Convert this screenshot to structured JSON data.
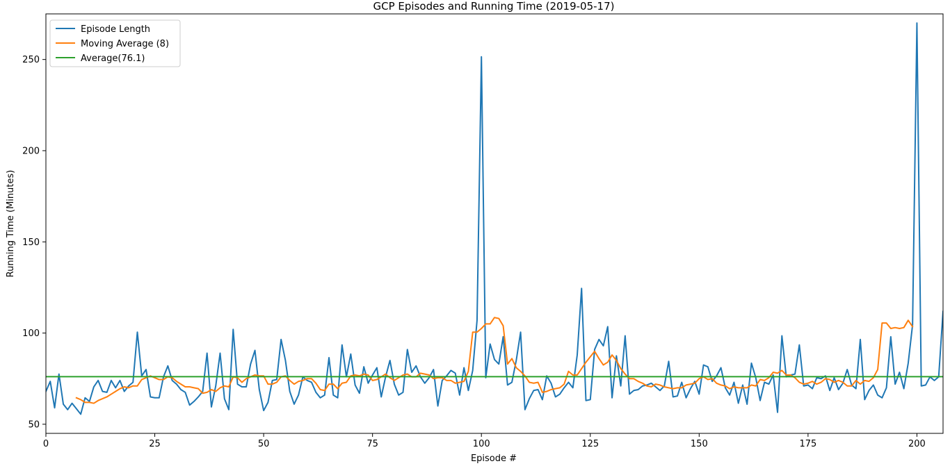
{
  "chart_data": {
    "type": "line",
    "title": "GCP Episodes and Running Time (2019-05-17)",
    "xlabel": "Episode #",
    "ylabel": "Running Time (Minutes)",
    "xlim": [
      0,
      206
    ],
    "ylim": [
      45,
      275
    ],
    "xticks": [
      0,
      25,
      50,
      75,
      100,
      125,
      150,
      175,
      200
    ],
    "yticks": [
      50,
      100,
      150,
      200,
      250
    ],
    "grid": false,
    "legend_position": "upper-left",
    "series": [
      {
        "name": "Episode Length",
        "color": "#1f77b4",
        "x_start": 0,
        "values": [
          68,
          73.5,
          59,
          77.5,
          61,
          58,
          61.5,
          58.5,
          55.5,
          64.5,
          62.5,
          70.5,
          74,
          68,
          67.5,
          74,
          70,
          74,
          68,
          71,
          73,
          100.5,
          76.5,
          80,
          65,
          64.5,
          64.5,
          76,
          82,
          74,
          72,
          69,
          67.5,
          60.5,
          62.5,
          65,
          68,
          89,
          59.5,
          71,
          89,
          64,
          58,
          102,
          72,
          70.5,
          70.5,
          83,
          90.5,
          69,
          57.5,
          62,
          74,
          74.5,
          96.5,
          85,
          68,
          61,
          66,
          76,
          74,
          73,
          67.5,
          64.5,
          66,
          86.5,
          66,
          64.5,
          93.5,
          76,
          88.5,
          71.5,
          67,
          81.5,
          72.5,
          77,
          81,
          65,
          76,
          85,
          72,
          66,
          67.5,
          91,
          78.5,
          82,
          76,
          72.5,
          75.5,
          80,
          60,
          74,
          76.5,
          79.5,
          78,
          66,
          81,
          68.5,
          79.5,
          107,
          251.5,
          75.5,
          94,
          85.5,
          83,
          98,
          71.5,
          73,
          85,
          100.5,
          58,
          64,
          68.5,
          69,
          63.5,
          76.5,
          72.5,
          65,
          66.5,
          70,
          73,
          70,
          88,
          124.5,
          63,
          63.5,
          91,
          96.5,
          93,
          103.5,
          64.5,
          87.5,
          71,
          98.5,
          66.5,
          68.5,
          69,
          71,
          71.5,
          72.5,
          70.5,
          68.5,
          71,
          84.5,
          65,
          65.5,
          73,
          64.5,
          69.5,
          73.5,
          66.5,
          82.5,
          81.5,
          73.5,
          76.5,
          81,
          70,
          66,
          73,
          61.5,
          71.5,
          61,
          83.5,
          75.5,
          63,
          73,
          72,
          77,
          56.5,
          98.5,
          76,
          77,
          77.5,
          93.5,
          71,
          71.5,
          69.5,
          75.5,
          75,
          76.5,
          68.5,
          75.5,
          69,
          72.5,
          80,
          71.5,
          69.5,
          96.5,
          63.5,
          68.5,
          71.5,
          66,
          64.5,
          70,
          98,
          72,
          78.5,
          69.5,
          83.5,
          104.5,
          270,
          71,
          71.5,
          76,
          74,
          76,
          112,
          80.5
        ]
      },
      {
        "name": "Moving Average (8)",
        "color": "#ff7f0e",
        "x_start": 7,
        "values": [
          64.5,
          63.5,
          62,
          62,
          61.5,
          63,
          64,
          65,
          66.5,
          68,
          69.5,
          70.5,
          70,
          71,
          71,
          74.5,
          75.5,
          76.5,
          75.5,
          74.5,
          74.5,
          76,
          75.5,
          73.5,
          72,
          70.5,
          70.5,
          70,
          69.5,
          67,
          67.5,
          69,
          68,
          70,
          71,
          70.5,
          76,
          75.5,
          73,
          75,
          76,
          77,
          76.5,
          76.5,
          72,
          72,
          73,
          76,
          76.5,
          74,
          72,
          73.5,
          74,
          75,
          75,
          72.5,
          69,
          68.5,
          72,
          72,
          69.5,
          72.5,
          73,
          76.5,
          77,
          76.5,
          77.5,
          77,
          74,
          74.5,
          76,
          77.5,
          75.5,
          74,
          75.5,
          77,
          77.5,
          76,
          76,
          78,
          77.5,
          77,
          75,
          75.5,
          75.5,
          74,
          74,
          72.5,
          73,
          73.5,
          79,
          100.5,
          100.5,
          102.5,
          105,
          105,
          108.5,
          108,
          104,
          83,
          86,
          81,
          79,
          76.5,
          73,
          72.5,
          73,
          67.5,
          68,
          69,
          69.5,
          70,
          72,
          79,
          77,
          77,
          80.5,
          84,
          87,
          90,
          86,
          82.5,
          84,
          88,
          85,
          80.5,
          77.5,
          75,
          75,
          73.5,
          72.5,
          71,
          70.5,
          72,
          71.5,
          70.5,
          70,
          69.5,
          70,
          70,
          71.5,
          72,
          72.5,
          75,
          76,
          74.5,
          75,
          72.5,
          71.5,
          71,
          69.5,
          70.5,
          70,
          70,
          70,
          71.5,
          71,
          74.5,
          74,
          75.5,
          78.5,
          78,
          79.5,
          77,
          77,
          75.5,
          73,
          72,
          72.5,
          73.5,
          72,
          73,
          75,
          74.5,
          73,
          74,
          73,
          71,
          71,
          74,
          72,
          74,
          73.5,
          75.5,
          80,
          105.5,
          105.5,
          102.5,
          103,
          102.5,
          103,
          107,
          103.5
        ]
      },
      {
        "name": "Average(76.1)",
        "color": "#2ca02c",
        "value": 76.1
      }
    ]
  }
}
